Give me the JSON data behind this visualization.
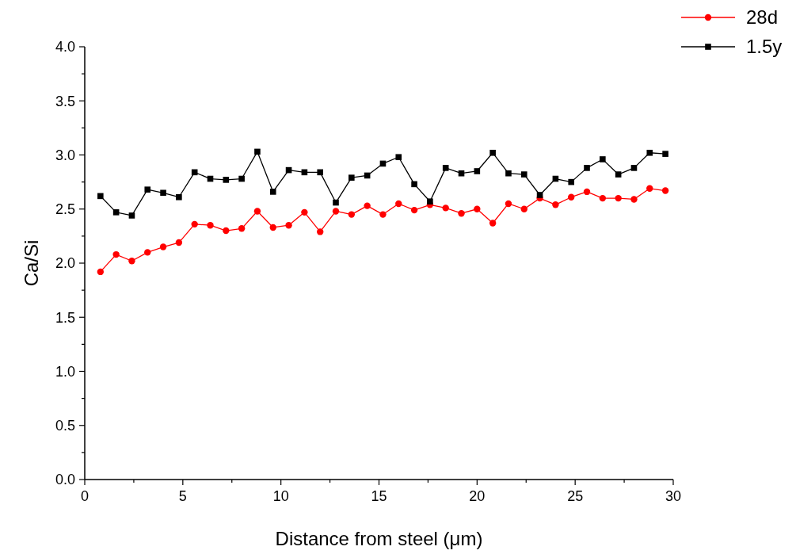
{
  "chart_data": {
    "type": "line",
    "xlabel": "Distance from steel (μm)",
    "ylabel": "Ca/Si",
    "x": [
      0.8,
      1.6,
      2.4,
      3.2,
      4.0,
      4.8,
      5.6,
      6.4,
      7.2,
      8.0,
      8.8,
      9.6,
      10.4,
      11.2,
      12.0,
      12.8,
      13.6,
      14.4,
      15.2,
      16.0,
      16.8,
      17.6,
      18.4,
      19.2,
      20.0,
      20.8,
      21.6,
      22.4,
      23.2,
      24.0,
      24.8,
      25.6,
      26.4,
      27.2,
      28.0,
      28.8,
      29.6
    ],
    "series": [
      {
        "name": "28d",
        "color": "#ff0000",
        "marker": "circle",
        "values": [
          1.92,
          2.08,
          2.02,
          2.1,
          2.15,
          2.19,
          2.36,
          2.35,
          2.3,
          2.32,
          2.48,
          2.33,
          2.35,
          2.47,
          2.29,
          2.48,
          2.45,
          2.53,
          2.45,
          2.55,
          2.49,
          2.54,
          2.51,
          2.46,
          2.5,
          2.37,
          2.55,
          2.5,
          2.6,
          2.54,
          2.61,
          2.66,
          2.6,
          2.6,
          2.59,
          2.69,
          2.67
        ]
      },
      {
        "name": "1.5y",
        "color": "#000000",
        "marker": "square",
        "values": [
          2.62,
          2.47,
          2.44,
          2.68,
          2.65,
          2.61,
          2.84,
          2.78,
          2.77,
          2.78,
          3.03,
          2.66,
          2.86,
          2.84,
          2.84,
          2.56,
          2.79,
          2.81,
          2.92,
          2.98,
          2.73,
          2.57,
          2.88,
          2.83,
          2.85,
          3.02,
          2.83,
          2.82,
          2.63,
          2.78,
          2.75,
          2.88,
          2.96,
          2.82,
          2.88,
          3.02,
          3.01
        ]
      }
    ],
    "xlim": [
      0,
      30
    ],
    "xticks": [
      0,
      {
        "value": 2.5,
        "label": null
      },
      5,
      {
        "value": 7.5,
        "label": null
      },
      10,
      {
        "value": 12.5,
        "label": null
      },
      15,
      {
        "value": 17.5,
        "label": null
      },
      20,
      {
        "value": 22.5,
        "label": null
      },
      25,
      {
        "value": 27.5,
        "label": null
      },
      30
    ],
    "ylim": [
      0,
      4
    ],
    "yticks": [
      {
        "value": 0,
        "label": "0.0"
      },
      {
        "value": 0.25,
        "label": null
      },
      {
        "value": 0.5,
        "label": "0.5"
      },
      {
        "value": 0.75,
        "label": null
      },
      {
        "value": 1,
        "label": "1.0"
      },
      {
        "value": 1.25,
        "label": null
      },
      {
        "value": 1.5,
        "label": "1.5"
      },
      {
        "value": 1.75,
        "label": null
      },
      {
        "value": 2,
        "label": "2.0"
      },
      {
        "value": 2.25,
        "label": null
      },
      {
        "value": 2.5,
        "label": "2.5"
      },
      {
        "value": 2.75,
        "label": null
      },
      {
        "value": 3,
        "label": "3.0"
      },
      {
        "value": 3.25,
        "label": null
      },
      {
        "value": 3.5,
        "label": "3.5"
      },
      {
        "value": 3.75,
        "label": null
      },
      {
        "value": 4,
        "label": "4.0"
      }
    ],
    "grid": false,
    "legend": "top right",
    "line_style": "solid"
  }
}
